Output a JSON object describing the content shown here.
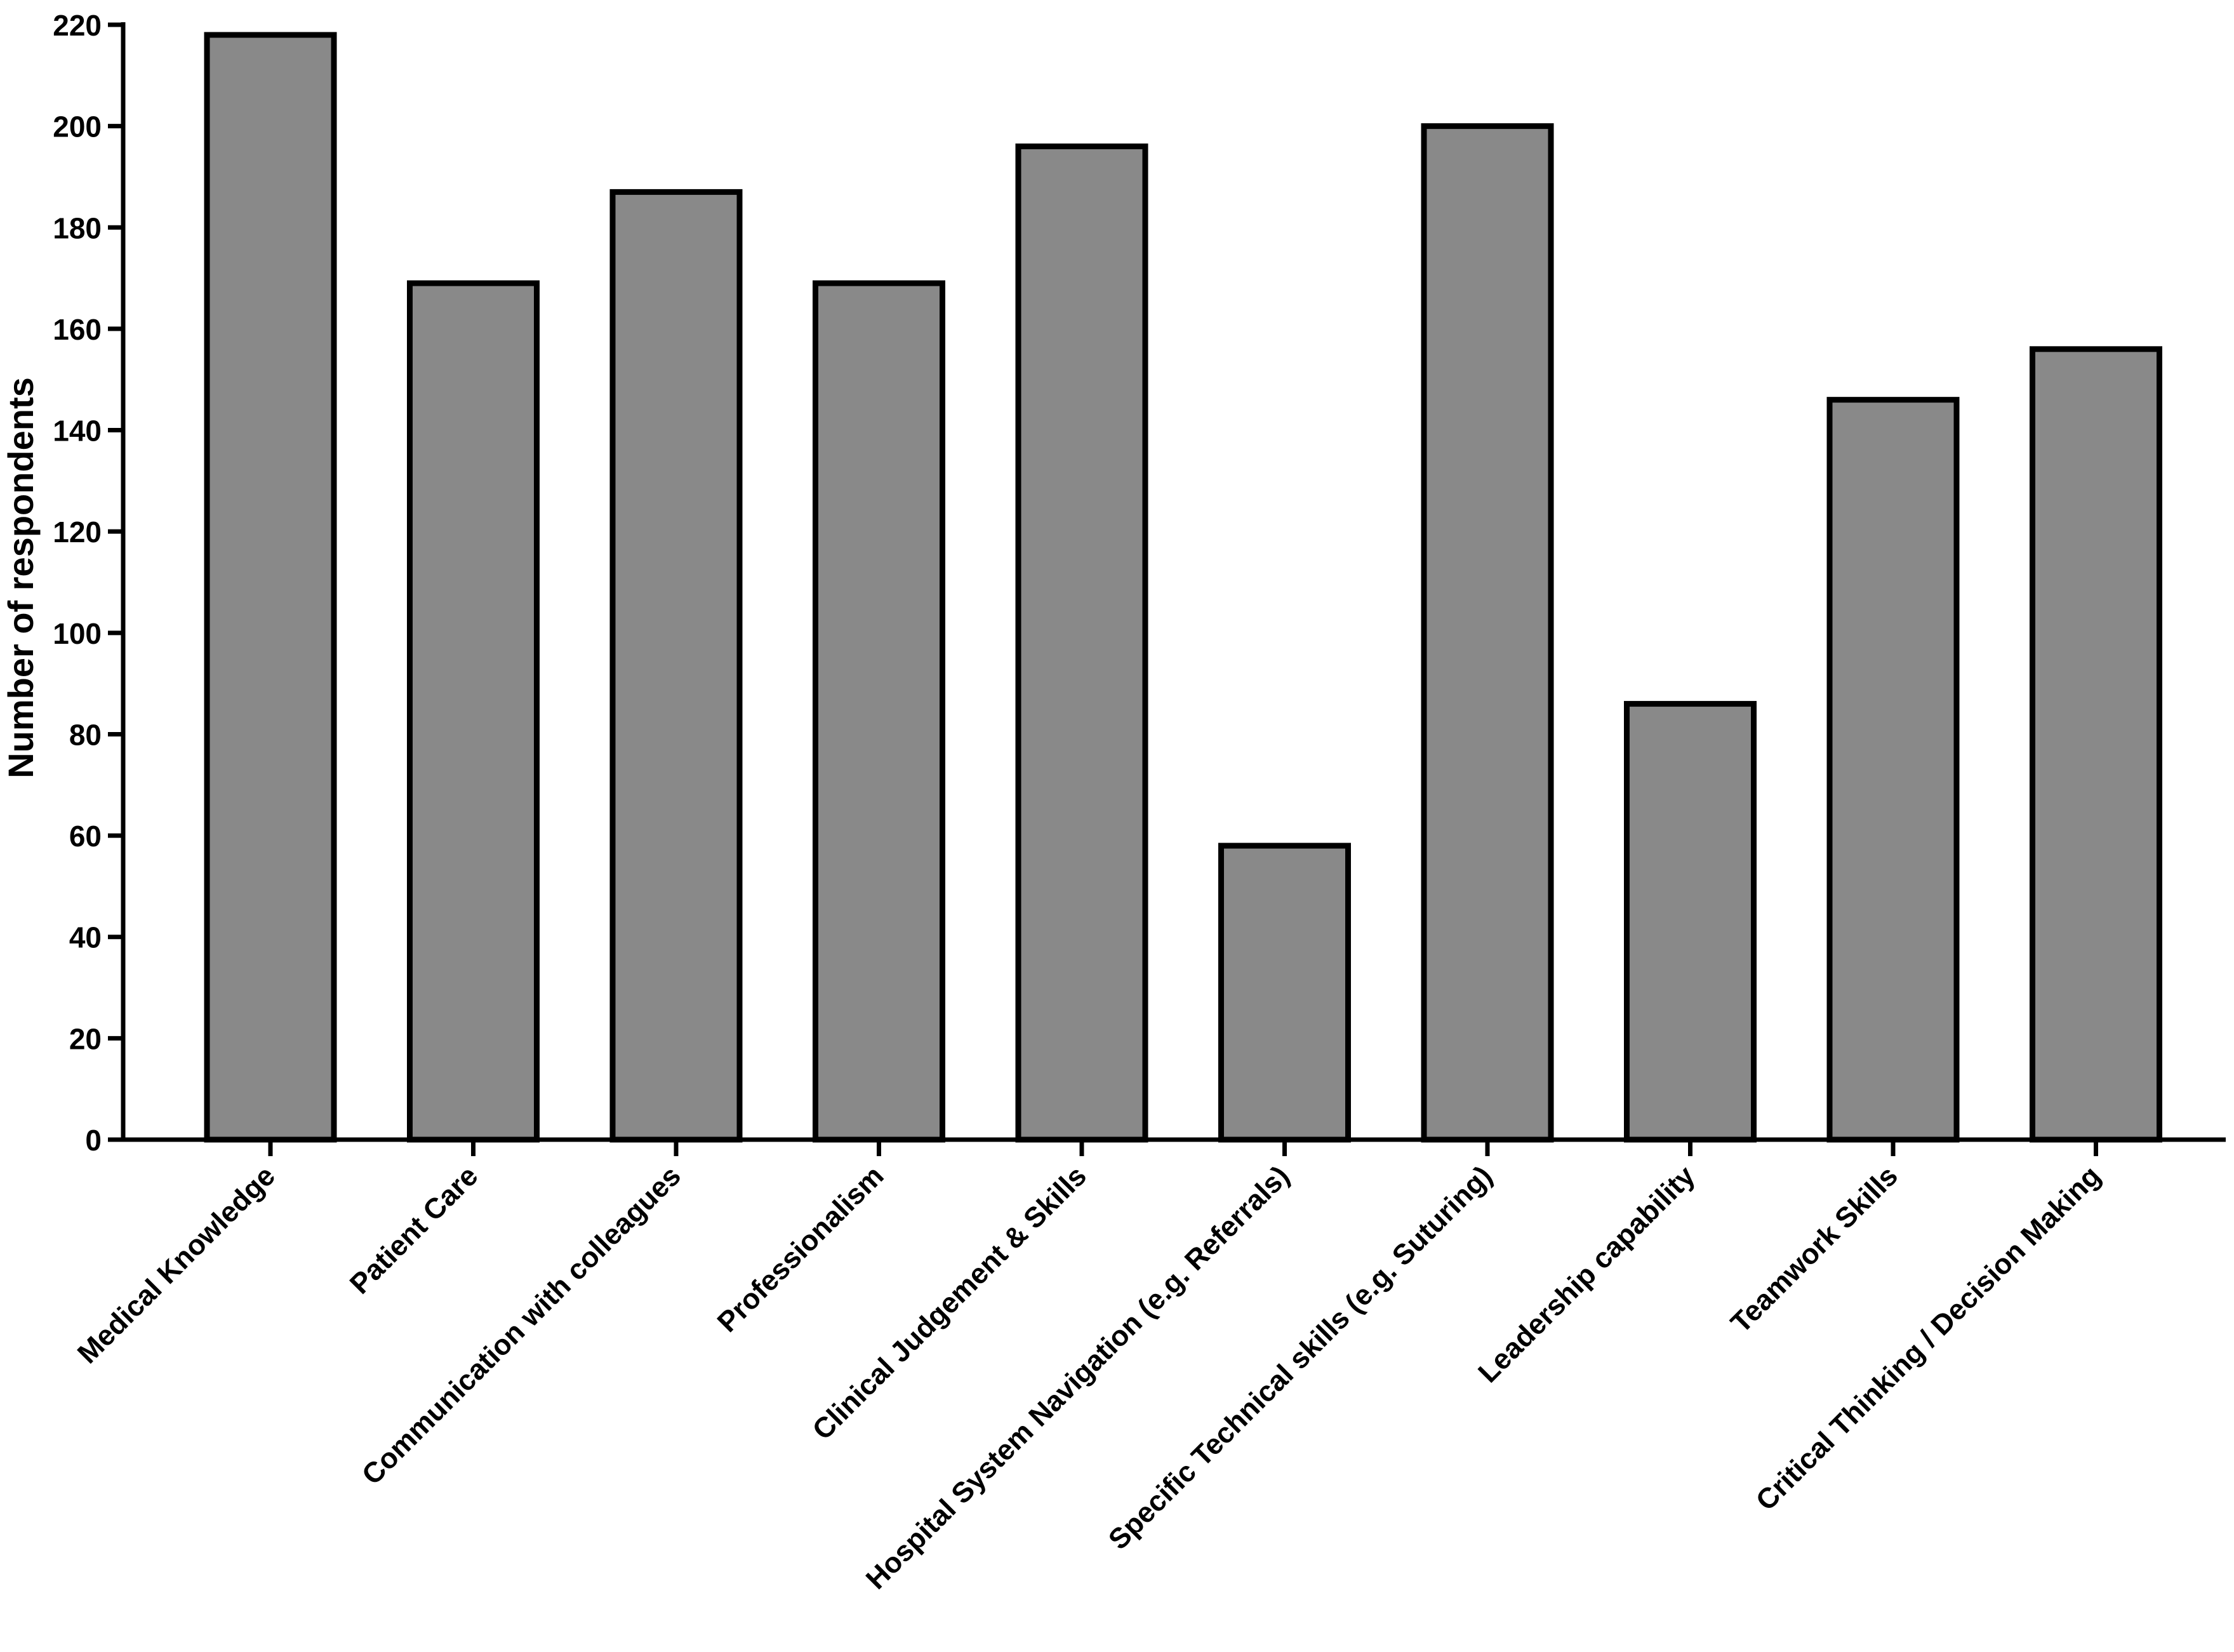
{
  "chart_data": {
    "type": "bar",
    "title": "",
    "xlabel": "",
    "ylabel": "Number of respondents",
    "ylim": [
      0,
      220
    ],
    "yticks": [
      0,
      20,
      40,
      60,
      80,
      100,
      120,
      140,
      160,
      180,
      200,
      220
    ],
    "categories": [
      "Medical Knowledge",
      "Patient Care",
      "Communication with colleagues",
      "Professionalism",
      "Clinical Judgement & Skills",
      "Hospital System Navigation (e.g. Referrals)",
      "Specific Technical skills (e.g. Suturing)",
      "Leadership capability",
      "Teamwork Skills",
      "Critical Thinking / Decision Making"
    ],
    "values": [
      218,
      169,
      187,
      169,
      196,
      58,
      200,
      86,
      146,
      156
    ],
    "bar_color": "#898989",
    "bar_edge_color": "#000000",
    "grid": false,
    "legend": "none"
  }
}
